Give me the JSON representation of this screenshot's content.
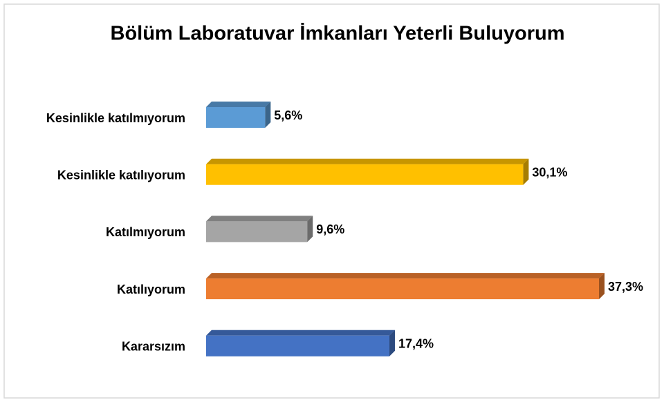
{
  "chart_data": {
    "type": "bar",
    "orientation": "horizontal",
    "title": "Bölüm Laboratuvar İmkanları Yeterli Buluyorum",
    "categories": [
      "Kesinlikle katılmıyorum",
      "Kesinlikle katılıyorum",
      "Katılmıyorum",
      "Katılıyorum",
      "Kararsızım"
    ],
    "values": [
      5.6,
      30.1,
      9.6,
      37.3,
      17.4
    ],
    "value_labels": [
      "5,6%",
      "30,1%",
      "9,6%",
      "37,3%",
      "17,4%"
    ],
    "colors": [
      "#5b9bd5",
      "#ffc000",
      "#a5a5a5",
      "#ed7d31",
      "#4472c4"
    ]
  }
}
